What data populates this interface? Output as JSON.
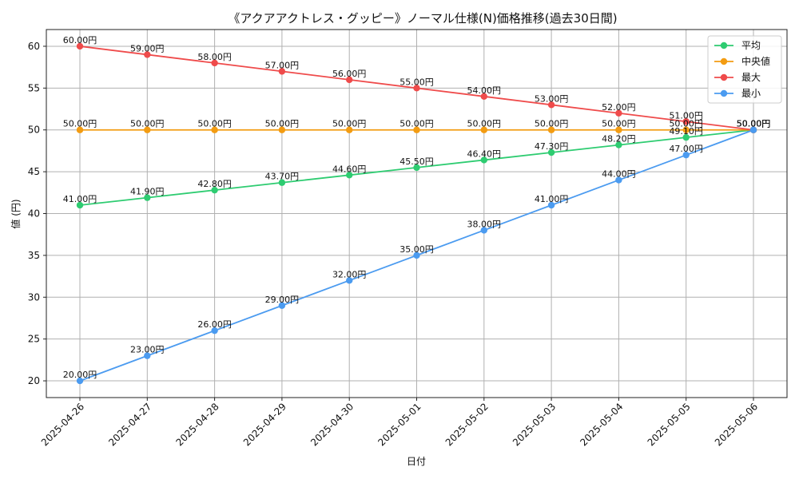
{
  "chart_data": {
    "type": "line",
    "title": "《アクアアクトレス・グッピー》ノーマル仕様(N)価格推移(過去30日間)",
    "xlabel": "日付",
    "ylabel": "値 (円)",
    "ylim": [
      18,
      62
    ],
    "yticks": [
      20,
      25,
      30,
      35,
      40,
      45,
      50,
      55,
      60
    ],
    "grid": true,
    "legend_position": "top-right",
    "label_suffix": "円",
    "categories": [
      "2025-04-26",
      "2025-04-27",
      "2025-04-28",
      "2025-04-29",
      "2025-04-30",
      "2025-05-01",
      "2025-05-02",
      "2025-05-03",
      "2025-05-04",
      "2025-05-05",
      "2025-05-06"
    ],
    "series": [
      {
        "name": "平均",
        "color": "#2ecc71",
        "values": [
          41.0,
          41.9,
          42.8,
          43.7,
          44.6,
          45.5,
          46.4,
          47.3,
          48.2,
          49.1,
          50.0
        ]
      },
      {
        "name": "中央値",
        "color": "#f39c12",
        "values": [
          50.0,
          50.0,
          50.0,
          50.0,
          50.0,
          50.0,
          50.0,
          50.0,
          50.0,
          50.0,
          50.0
        ]
      },
      {
        "name": "最大",
        "color": "#ef4b4b",
        "values": [
          60.0,
          59.0,
          58.0,
          57.0,
          56.0,
          55.0,
          54.0,
          53.0,
          52.0,
          51.0,
          50.0
        ]
      },
      {
        "name": "最小",
        "color": "#4b9bf0",
        "values": [
          20.0,
          23.0,
          26.0,
          29.0,
          32.0,
          35.0,
          38.0,
          41.0,
          44.0,
          47.0,
          50.0
        ]
      }
    ]
  }
}
